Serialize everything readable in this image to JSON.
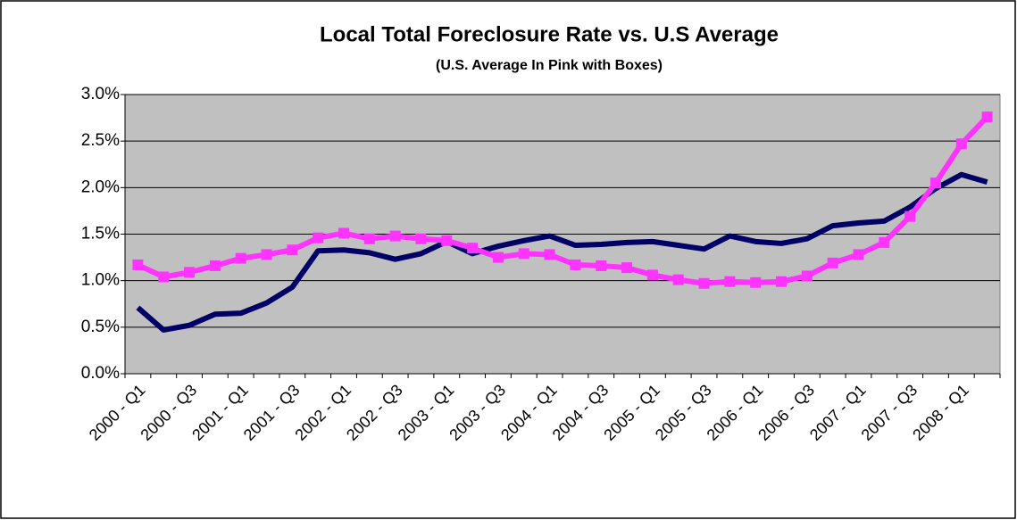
{
  "chart_data": {
    "type": "line",
    "title": "Local Total Foreclosure Rate vs. U.S Average",
    "subtitle": "(U.S. Average In Pink with Boxes)",
    "categories": [
      "2000 - Q1",
      null,
      "2000 - Q3",
      null,
      "2001 - Q1",
      null,
      "2001 - Q3",
      null,
      "2002 - Q1",
      null,
      "2002 - Q3",
      null,
      "2003 - Q1",
      null,
      "2003 - Q3",
      null,
      "2004 - Q1",
      null,
      "2004 - Q3",
      null,
      "2005 - Q1",
      null,
      "2005 - Q3",
      null,
      "2006 - Q1",
      null,
      "2006 - Q3",
      null,
      "2007 - Q1",
      null,
      "2007 - Q3",
      null,
      "2008 - Q1",
      null
    ],
    "series": [
      {
        "color": "#000066",
        "marker": "none",
        "values": [
          0.71,
          0.47,
          0.52,
          0.64,
          0.65,
          0.76,
          0.93,
          1.32,
          1.33,
          1.3,
          1.23,
          1.29,
          1.42,
          1.29,
          1.37,
          1.43,
          1.48,
          1.38,
          1.39,
          1.41,
          1.42,
          1.38,
          1.34,
          1.48,
          1.42,
          1.4,
          1.45,
          1.59,
          1.62,
          1.64,
          1.79,
          1.99,
          2.14,
          2.06
        ]
      },
      {
        "color": "#ff33ff",
        "marker": "square",
        "values": [
          1.17,
          1.04,
          1.09,
          1.16,
          1.24,
          1.28,
          1.33,
          1.46,
          1.51,
          1.45,
          1.48,
          1.45,
          1.43,
          1.35,
          1.25,
          1.29,
          1.28,
          1.17,
          1.16,
          1.14,
          1.06,
          1.01,
          0.97,
          0.99,
          0.98,
          0.99,
          1.05,
          1.19,
          1.28,
          1.41,
          1.69,
          2.05,
          2.47,
          2.76
        ]
      }
    ],
    "ylim": [
      0,
      3
    ],
    "yticks": [
      {
        "value": 0,
        "label": "0.0%"
      },
      {
        "value": 0.5,
        "label": "0.5%"
      },
      {
        "value": 1,
        "label": "1.0%"
      },
      {
        "value": 1.5,
        "label": "1.5%"
      },
      {
        "value": 2,
        "label": "2.0%"
      },
      {
        "value": 2.5,
        "label": "2.5%"
      },
      {
        "value": 3,
        "label": "3.0%"
      }
    ],
    "grid": true
  }
}
